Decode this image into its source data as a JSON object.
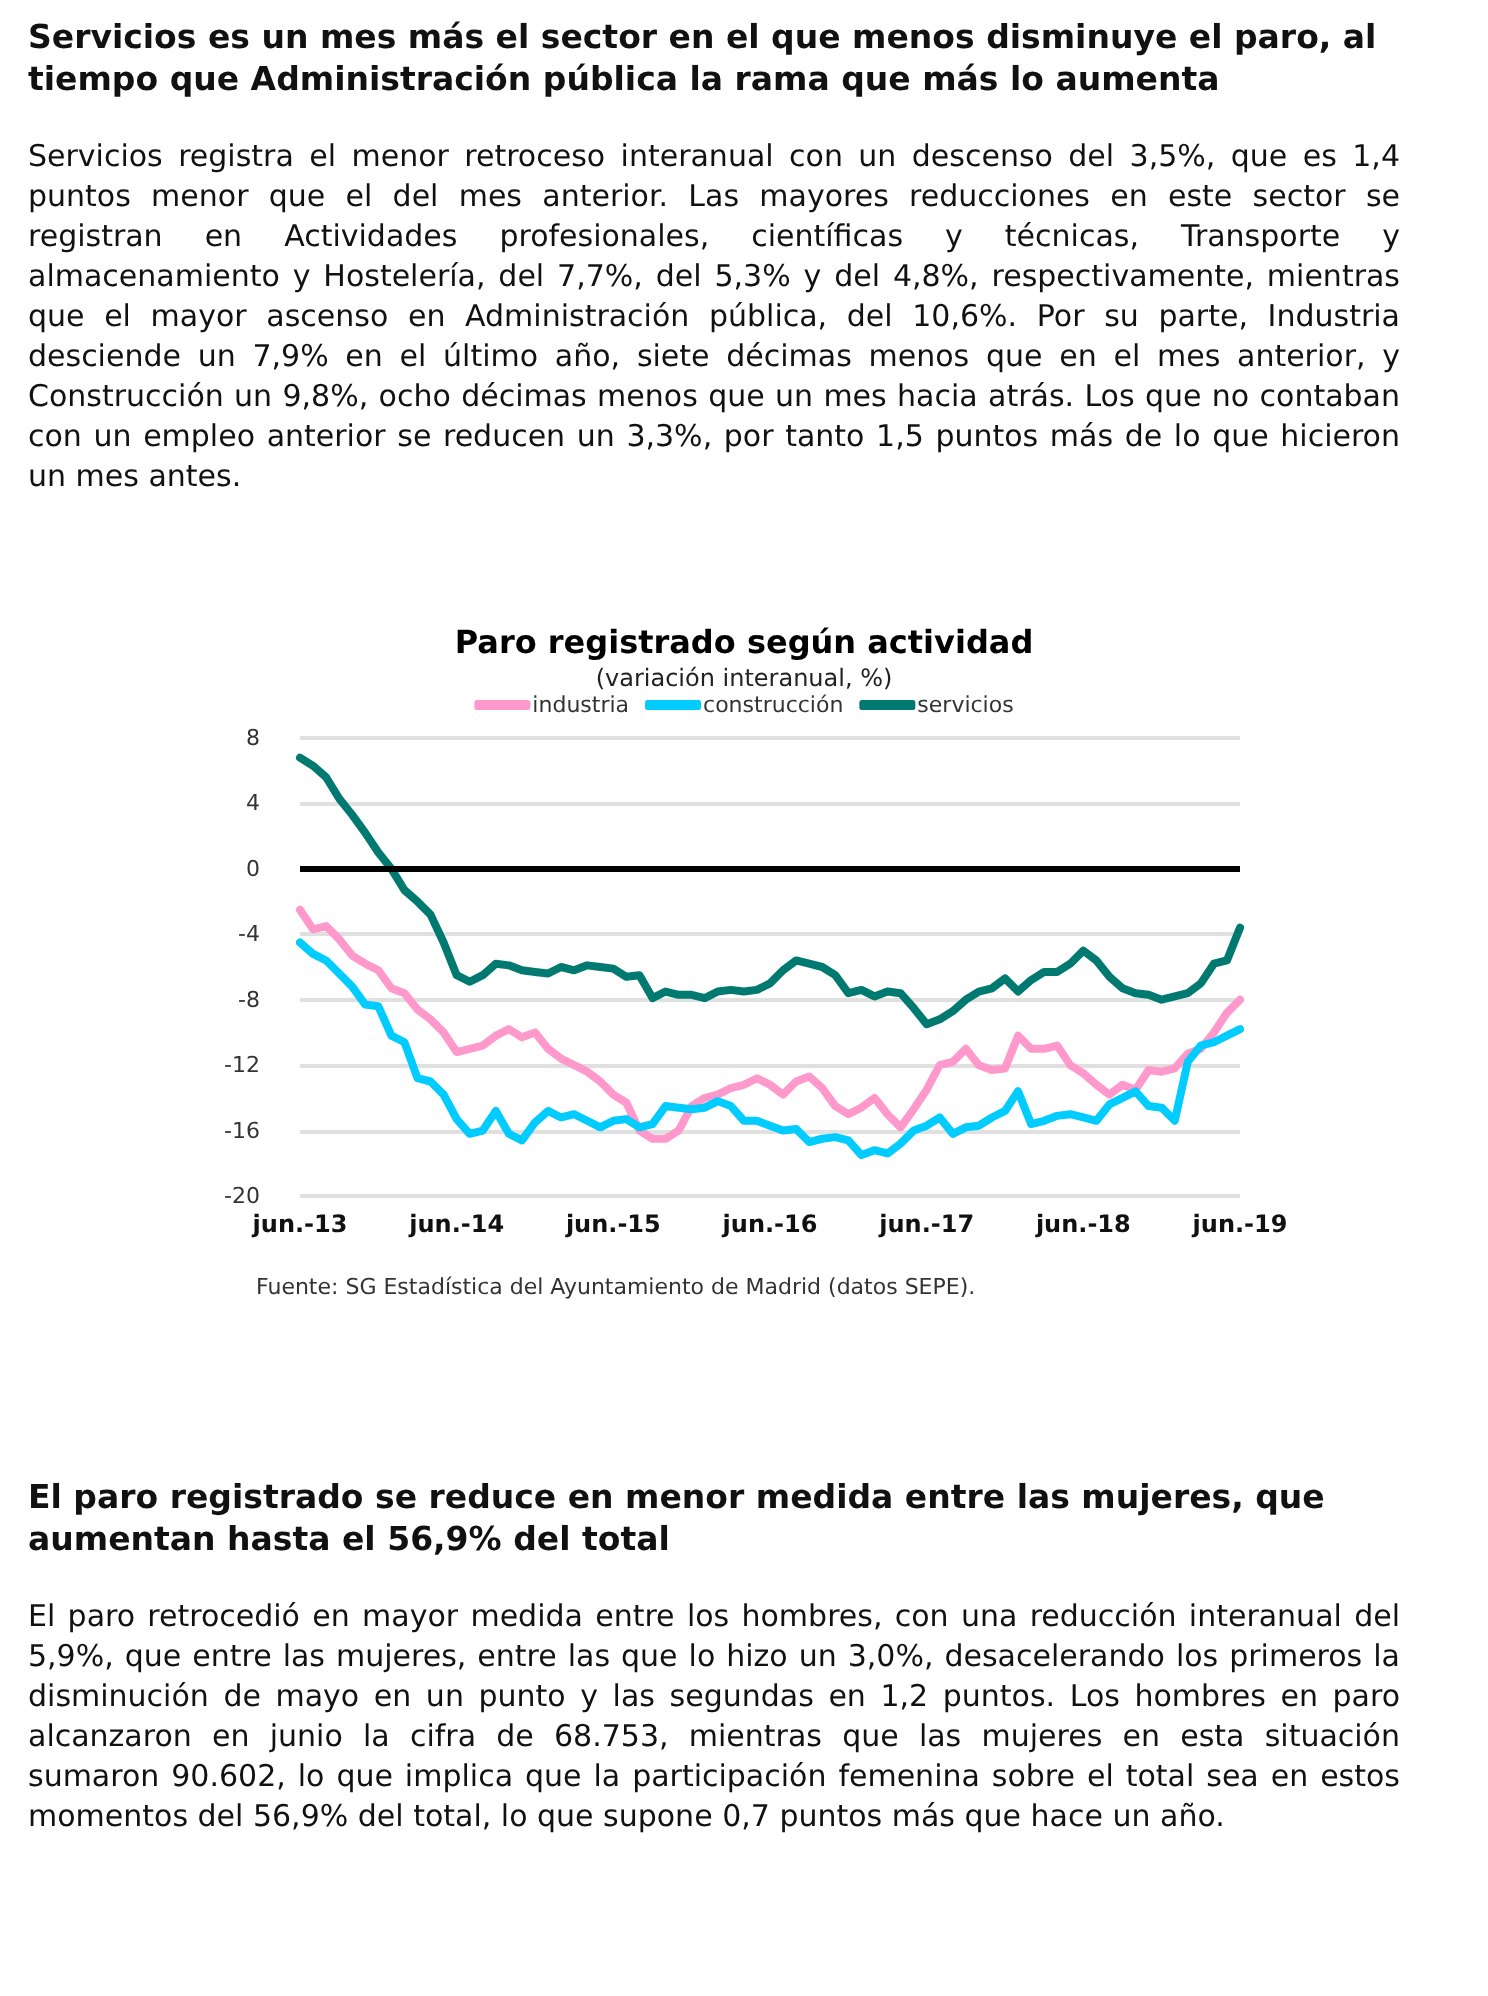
{
  "chart_data": {
    "type": "line",
    "title": "Paro registrado según actividad",
    "subtitle": "(variación interanual, %)",
    "annotations": [
      "Servicios es un mes más el sector en el que menos disminuye el paro, al tiempo que Administración pública la rama que más lo aumenta",
      "Servicios registra el menor retroceso interanual con un descenso del 3,5%, que es 1,4 puntos menor que el del mes anterior. Las mayores reducciones en este sector se registran en Actividades profesionales, científicas y técnicas, Transporte y almacenamiento y Hostelería, del 7,7%, del 5,3% y del 4,8%, respectivamente, mientras que el mayor ascenso en Administración pública, del 10,6%. Por su parte, Industria desciende un 7,9% en el último año, siete décimas menos que en el mes anterior, y Construcción un 9,8%, ocho décimas menos que un mes hacia atrás. Los que no contaban con un empleo anterior se reducen un 3,3%, por tanto 1,5 puntos más de lo que hicieron un mes antes.",
      "Fuente: SG Estadística del Ayuntamiento de Madrid (datos SEPE).",
      "El paro registrado se reduce en menor medida entre las mujeres, que aumentan hasta el 56,9% del total",
      "El paro retrocedió en mayor medida entre los hombres, con una reducción interanual del 5,9%, que entre las mujeres, entre las que lo hizo un 3,0%, desacelerando los primeros la disminución de mayo en un punto y las segundas en 1,2 puntos. Los hombres en paro alcanzaron en junio la cifra de 68.753, mientras que las mujeres en esta situación sumaron 90.602, lo que implica que la participación femenina sobre el total sea en estos momentos del 56,9% del total, lo que supone 0,7 puntos más que hace un año."
    ],
    "categories": [
      "jun.-13",
      null,
      null,
      null,
      null,
      null,
      null,
      null,
      null,
      null,
      null,
      null,
      "jun.-14",
      null,
      null,
      null,
      null,
      null,
      null,
      null,
      null,
      null,
      null,
      null,
      "jun.-15",
      null,
      null,
      null,
      null,
      null,
      null,
      null,
      null,
      null,
      null,
      null,
      "jun.-16",
      null,
      null,
      null,
      null,
      null,
      null,
      null,
      null,
      null,
      null,
      null,
      "jun.-17",
      null,
      null,
      null,
      null,
      null,
      null,
      null,
      null,
      null,
      null,
      null,
      "jun.-18",
      null,
      null,
      null,
      null,
      null,
      null,
      null,
      null,
      null,
      null,
      null,
      "jun.-19"
    ],
    "series": [
      {
        "name": "industria",
        "color": "#ff99cc",
        "values": [
          -2.5,
          -3.7,
          -3.5,
          -4.3,
          -5.3,
          -5.8,
          -6.2,
          -7.3,
          -7.6,
          -8.6,
          -9.2,
          -10.0,
          -11.2,
          -11.0,
          -10.8,
          -10.2,
          -9.8,
          -10.3,
          -10.0,
          -11.0,
          -11.6,
          -12.0,
          -12.4,
          -13.0,
          -13.8,
          -14.3,
          -16.0,
          -16.5,
          -16.5,
          -16.0,
          -14.5,
          -14.0,
          -13.8,
          -13.4,
          -13.2,
          -12.8,
          -13.2,
          -13.8,
          -13.0,
          -12.7,
          -13.4,
          -14.5,
          -15.0,
          -14.6,
          -14.0,
          -15.0,
          -15.8,
          -14.7,
          -13.5,
          -12.0,
          -11.8,
          -11.0,
          -12.0,
          -12.3,
          -12.2,
          -10.2,
          -11.0,
          -11.0,
          -10.8,
          -12.0,
          -12.5,
          -13.2,
          -13.8,
          -13.2,
          -13.5,
          -12.3,
          -12.4,
          -12.2,
          -11.3,
          -11.0,
          -10.0,
          -8.8,
          -8.0
        ]
      },
      {
        "name": "construcción",
        "color": "#00ccff",
        "values": [
          -4.5,
          -5.2,
          -5.6,
          -6.4,
          -7.2,
          -8.3,
          -8.4,
          -10.2,
          -10.6,
          -12.8,
          -13.0,
          -13.8,
          -15.3,
          -16.2,
          -16.0,
          -14.8,
          -16.2,
          -16.6,
          -15.5,
          -14.8,
          -15.2,
          -15.0,
          -15.4,
          -15.8,
          -15.4,
          -15.3,
          -15.8,
          -15.6,
          -14.5,
          -14.6,
          -14.7,
          -14.6,
          -14.2,
          -14.5,
          -15.4,
          -15.4,
          -15.7,
          -16.0,
          -15.9,
          -16.7,
          -16.5,
          -16.4,
          -16.6,
          -17.5,
          -17.2,
          -17.4,
          -16.8,
          -16.0,
          -15.7,
          -15.2,
          -16.2,
          -15.8,
          -15.7,
          -15.2,
          -14.8,
          -13.6,
          -15.6,
          -15.4,
          -15.1,
          -15.0,
          -15.2,
          -15.4,
          -14.4,
          -14.0,
          -13.6,
          -14.5,
          -14.6,
          -15.4,
          -11.8,
          -10.8,
          -10.6,
          -10.2,
          -9.8
        ]
      },
      {
        "name": "servicios",
        "color": "#007a70",
        "values": [
          6.8,
          6.3,
          5.6,
          4.3,
          3.3,
          2.2,
          1.0,
          0.0,
          -1.3,
          -2.0,
          -2.8,
          -4.5,
          -6.5,
          -6.9,
          -6.5,
          -5.8,
          -5.9,
          -6.2,
          -6.3,
          -6.4,
          -6.0,
          -6.2,
          -5.9,
          -6.0,
          -6.1,
          -6.6,
          -6.5,
          -7.9,
          -7.5,
          -7.7,
          -7.7,
          -7.9,
          -7.5,
          -7.4,
          -7.5,
          -7.4,
          -7.0,
          -6.2,
          -5.6,
          -5.8,
          -6.0,
          -6.5,
          -7.6,
          -7.4,
          -7.8,
          -7.5,
          -7.6,
          -8.5,
          -9.5,
          -9.2,
          -8.7,
          -8.0,
          -7.5,
          -7.3,
          -6.7,
          -7.5,
          -6.8,
          -6.3,
          -6.3,
          -5.8,
          -5.0,
          -5.6,
          -6.6,
          -7.3,
          -7.6,
          -7.7,
          -8.0,
          -7.8,
          -7.6,
          -7.0,
          -5.8,
          -5.6,
          -3.6
        ]
      }
    ],
    "ylim": [
      -20,
      8
    ],
    "yticks": [
      -20,
      -16,
      -12,
      -8,
      -4,
      0,
      4,
      8
    ],
    "ref_lines": [
      {
        "axis": "y",
        "value": 0,
        "color": "#000000"
      }
    ],
    "grid": "y",
    "legend": "top",
    "marker": "none",
    "line_style": "solid"
  }
}
